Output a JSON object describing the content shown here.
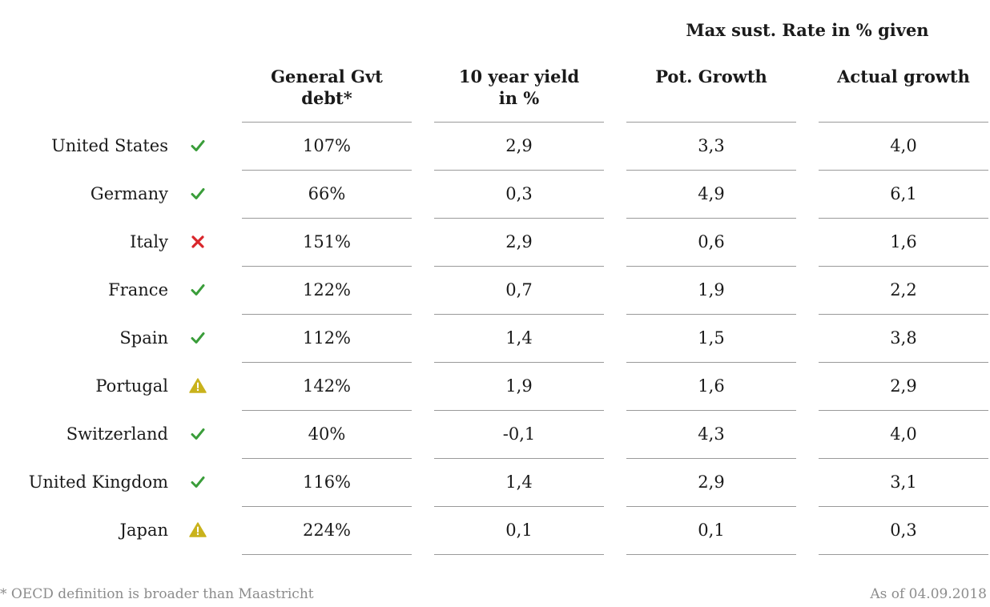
{
  "chart_data": {
    "type": "table",
    "group_header": "Max sust. Rate in % given",
    "columns": [
      "General Gvt\ndebt*",
      "10 year yield\nin %",
      "Pot. Growth",
      "Actual growth"
    ],
    "rows": [
      {
        "country": "United States",
        "status": "check",
        "values": [
          "107%",
          "2,9",
          "3,3",
          "4,0"
        ]
      },
      {
        "country": "Germany",
        "status": "check",
        "values": [
          "66%",
          "0,3",
          "4,9",
          "6,1"
        ]
      },
      {
        "country": "Italy",
        "status": "cross",
        "values": [
          "151%",
          "2,9",
          "0,6",
          "1,6"
        ]
      },
      {
        "country": "France",
        "status": "check",
        "values": [
          "122%",
          "0,7",
          "1,9",
          "2,2"
        ]
      },
      {
        "country": "Spain",
        "status": "check",
        "values": [
          "112%",
          "1,4",
          "1,5",
          "3,8"
        ]
      },
      {
        "country": "Portugal",
        "status": "warning",
        "values": [
          "142%",
          "1,9",
          "1,6",
          "2,9"
        ]
      },
      {
        "country": "Switzerland",
        "status": "check",
        "values": [
          "40%",
          "-0,1",
          "4,3",
          "4,0"
        ]
      },
      {
        "country": "United Kingdom",
        "status": "check",
        "values": [
          "116%",
          "1,4",
          "2,9",
          "3,1"
        ]
      },
      {
        "country": "Japan",
        "status": "warning",
        "values": [
          "224%",
          "0,1",
          "0,1",
          "0,3"
        ]
      }
    ],
    "footnote": "* OECD definition is broader than Maastricht",
    "as_of": "As of 04.09.2018"
  },
  "colors": {
    "check": "#3a9d3a",
    "cross": "#d9262b",
    "warning": "#c9b21c",
    "rule": "#9a9a9a",
    "note_text": "#8c8c8c"
  },
  "icons": {
    "check": "check-icon",
    "cross": "cross-icon",
    "warning": "warning-icon"
  }
}
